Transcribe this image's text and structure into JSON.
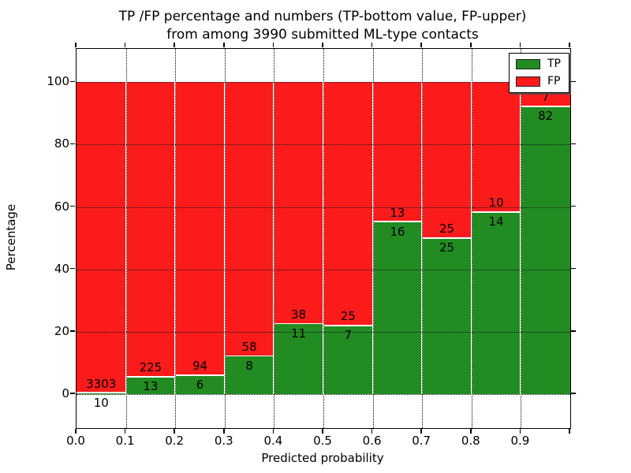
{
  "title": {
    "line1": "TP /FP percentage and numbers (TP-bottom value, FP-upper)",
    "line2": "from among 3990 submitted ML-type contacts"
  },
  "chart_data": {
    "type": "bar",
    "stacked": true,
    "normalized_to_percent": true,
    "title": "TP /FP percentage and numbers (TP-bottom value, FP-upper) from among 3990 submitted ML-type contacts",
    "xlabel": "Predicted probability",
    "ylabel": "Percentage",
    "total_contacts": 3990,
    "bin_edges": [
      0.0,
      0.1,
      0.2,
      0.3,
      0.4,
      0.5,
      0.6,
      0.7,
      0.8,
      0.9,
      1.0
    ],
    "x_tick_labels": [
      "0.0",
      "0.1",
      "0.2",
      "0.3",
      "0.4",
      "0.5",
      "0.6",
      "0.7",
      "0.8",
      "0.9"
    ],
    "y_tick_values": [
      0,
      20,
      40,
      60,
      80,
      100
    ],
    "y_tick_labels": [
      "0",
      "20",
      "40",
      "60",
      "80",
      "100"
    ],
    "xlim": [
      0.0,
      1.0
    ],
    "ylim": [
      -10.9,
      110.7
    ],
    "grid": "dotted",
    "legend_position": "upper right",
    "series": [
      {
        "name": "TP",
        "color": "#228b22",
        "counts": [
          10,
          13,
          6,
          8,
          11,
          7,
          16,
          25,
          14,
          82
        ]
      },
      {
        "name": "FP",
        "color": "#fc1b1b",
        "counts": [
          3303,
          225,
          94,
          58,
          38,
          25,
          13,
          25,
          10,
          7
        ]
      }
    ],
    "tp_percent_of_bin": [
      0.3,
      5.46,
      6.0,
      12.12,
      22.45,
      21.88,
      55.17,
      50.0,
      58.33,
      92.13
    ]
  },
  "legend": {
    "tp_label": "TP",
    "fp_label": "FP"
  },
  "colors": {
    "tp_green": "#228b22",
    "fp_red": "#fc1b1b",
    "axis": "#000000",
    "background": "#ffffff"
  }
}
